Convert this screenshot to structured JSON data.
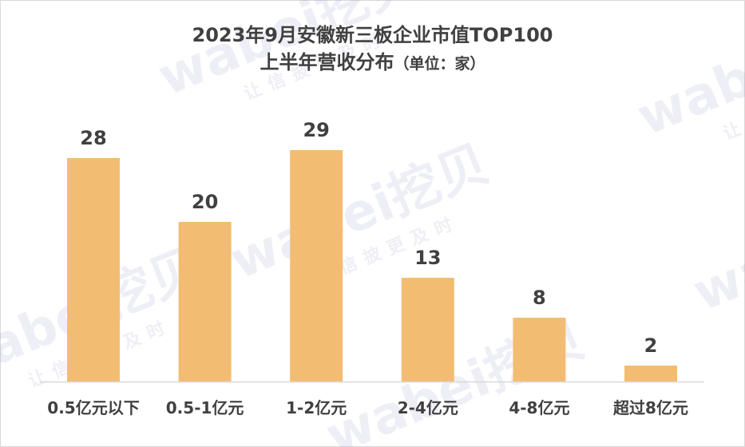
{
  "chart_data": {
    "type": "bar",
    "title_line1": "2023年9月安徽新三板企业市值TOP100",
    "title_line2": "上半年营收分布",
    "title_unit": "（单位：家）",
    "categories": [
      "0.5亿元以下",
      "0.5-1亿元",
      "1-2亿元",
      "2-4亿元",
      "4-8亿元",
      "超过8亿元"
    ],
    "values": [
      28,
      20,
      29,
      13,
      8,
      2
    ],
    "ylim": [
      0,
      30
    ],
    "grid": false,
    "legend": "none",
    "bar_color": "#f2bd72",
    "axis_color": "#d9d9d9"
  },
  "watermark": {
    "brand": "wabei挖贝",
    "slogan": "让信披更及时"
  }
}
